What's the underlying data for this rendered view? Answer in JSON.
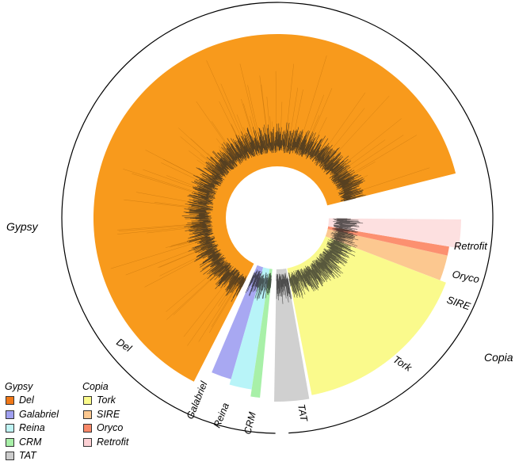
{
  "superfamilies": {
    "gypsy": "Gypsy",
    "copia": "Copia"
  },
  "clades": [
    {
      "name": "Del",
      "superfamily": "gypsy",
      "color": "#f89a1c"
    },
    {
      "name": "Galabriel",
      "superfamily": "gypsy",
      "color": "#a8a8f2"
    },
    {
      "name": "Reina",
      "superfamily": "gypsy",
      "color": "#b8f4f8"
    },
    {
      "name": "CRM",
      "superfamily": "gypsy",
      "color": "#a8f0a8"
    },
    {
      "name": "TAT",
      "superfamily": "gypsy",
      "color": "#d0d0d0"
    },
    {
      "name": "Tork",
      "superfamily": "copia",
      "color": "#fafa8c"
    },
    {
      "name": "SIRE",
      "superfamily": "copia",
      "color": "#fcc890"
    },
    {
      "name": "Oryco",
      "superfamily": "copia",
      "color": "#fc9070"
    },
    {
      "name": "Retrofit",
      "superfamily": "copia",
      "color": "#fde0e0"
    }
  ],
  "legend": {
    "gypsy_title": "Gypsy",
    "copia_title": "Copia",
    "gypsy_items": [
      {
        "label": "Del",
        "color": "#f07818"
      },
      {
        "label": "Galabriel",
        "color": "#a0a0f0"
      },
      {
        "label": "Reina",
        "color": "#bff4f4"
      },
      {
        "label": "CRM",
        "color": "#a8f0a8"
      },
      {
        "label": "TAT",
        "color": "#cccccc"
      }
    ],
    "copia_items": [
      {
        "label": "Tork",
        "color": "#fafa8c"
      },
      {
        "label": "SIRE",
        "color": "#fcc890"
      },
      {
        "label": "Oryco",
        "color": "#f88868"
      },
      {
        "label": "Retrofit",
        "color": "#fcd0d4"
      }
    ]
  }
}
